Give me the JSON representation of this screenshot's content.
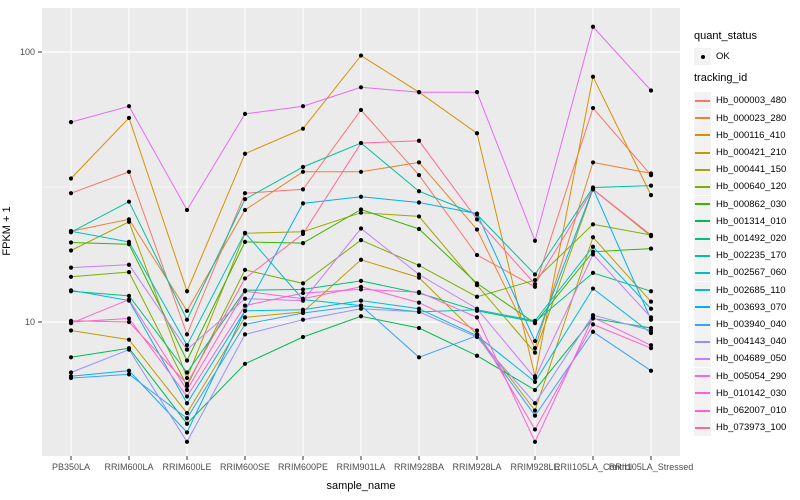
{
  "legend": {
    "quant_status_title": "quant_status",
    "ok_label": "OK",
    "tracking_title": "tracking_id"
  },
  "chart_data": {
    "type": "line",
    "title": "",
    "xlabel": "sample_name",
    "ylabel": "FPKM + 1",
    "y_scale": "log10",
    "y_ticks": [
      10,
      100
    ],
    "y_minor_ticks": [
      31.62
    ],
    "ylim": [
      3.2,
      145
    ],
    "grid": true,
    "legend_position": "right",
    "panel_bg": "#EBEBEB",
    "point_color": "#000000",
    "quant_status": "OK",
    "categories": [
      "PB350LA",
      "RRIM600LA",
      "RRIM600LE",
      "RRIM600SE",
      "RRIM600PE",
      "RRIM901LA",
      "RRIM928BA",
      "RRIM928LA",
      "RRIM928LE",
      "RRII105LA_Control",
      "RRII105LA_Stressed"
    ],
    "series": [
      {
        "name": "Hb_000003_480",
        "color": "#F8766D",
        "values": [
          30,
          36,
          9.0,
          30,
          31,
          61,
          35,
          17.7,
          13.5,
          62,
          35
        ]
      },
      {
        "name": "Hb_000023_280",
        "color": "#EA8331",
        "values": [
          21.7,
          24,
          11,
          26,
          36,
          36,
          39,
          22,
          8.0,
          39,
          35.5
        ]
      },
      {
        "name": "Hb_000116_410",
        "color": "#D89000",
        "values": [
          34,
          57,
          13,
          42,
          52,
          97,
          71,
          50,
          6.3,
          81,
          29.5
        ]
      },
      {
        "name": "Hb_000421_210",
        "color": "#C09B00",
        "values": [
          9.3,
          8.6,
          4.6,
          10.4,
          10.9,
          17,
          14.6,
          9.0,
          4.7,
          20.6,
          11.9
        ]
      },
      {
        "name": "Hb_000441_150",
        "color": "#A3A500",
        "values": [
          18.4,
          23.5,
          6.2,
          21.3,
          21.6,
          25.4,
          24.6,
          13.7,
          7.7,
          31,
          20.8
        ]
      },
      {
        "name": "Hb_000640_120",
        "color": "#7CAE00",
        "values": [
          14.7,
          15.3,
          5.8,
          15.6,
          13.9,
          20.1,
          16.2,
          12.4,
          14.3,
          23,
          21
        ]
      },
      {
        "name": "Hb_000862_030",
        "color": "#39B600",
        "values": [
          19.7,
          19.4,
          7.2,
          19.8,
          19.6,
          26.1,
          22.1,
          13.9,
          9.9,
          18.2,
          18.7
        ]
      },
      {
        "name": "Hb_001314_010",
        "color": "#00BB4E",
        "values": [
          7.4,
          8.0,
          4.2,
          7.0,
          8.8,
          10.5,
          9.5,
          7.5,
          5.6,
          10.3,
          9.5
        ]
      },
      {
        "name": "Hb_001492_020",
        "color": "#00BF7D",
        "values": [
          13.0,
          12.5,
          6.5,
          13.1,
          13.2,
          14.2,
          12.8,
          11.0,
          10.0,
          15.2,
          13.0
        ]
      },
      {
        "name": "Hb_002235_170",
        "color": "#00C1A3",
        "values": [
          21.5,
          27.9,
          10.2,
          28.5,
          37.5,
          46,
          30.5,
          25,
          15,
          31.5,
          32
        ]
      },
      {
        "name": "Hb_002567_060",
        "color": "#00BFC4",
        "values": [
          21.7,
          19.8,
          8.2,
          21.4,
          12.1,
          11.5,
          10.9,
          11.1,
          10.1,
          19,
          11.2
        ]
      },
      {
        "name": "Hb_002685_110",
        "color": "#00BAE0",
        "values": [
          13.1,
          12.0,
          5.0,
          11.0,
          11.1,
          12.0,
          11.2,
          8.9,
          6.0,
          13.3,
          9.1
        ]
      },
      {
        "name": "Hb_003693_070",
        "color": "#00B0F6",
        "values": [
          6.3,
          6.6,
          3.9,
          11.0,
          27.5,
          29.1,
          27.7,
          25.2,
          8.5,
          31.2,
          10.2
        ]
      },
      {
        "name": "Hb_003940_040",
        "color": "#35A2FF",
        "values": [
          6.2,
          6.4,
          4.4,
          9.8,
          10.8,
          11.5,
          7.4,
          8.9,
          4.5,
          9.2,
          6.6
        ]
      },
      {
        "name": "Hb_004143_040",
        "color": "#9590FF",
        "values": [
          6.5,
          7.9,
          3.6,
          9.0,
          10.2,
          11.2,
          10.9,
          8.8,
          5.0,
          10.6,
          9.3
        ]
      },
      {
        "name": "Hb_004689_050",
        "color": "#C77CFF",
        "values": [
          15.9,
          16.3,
          7.9,
          12.2,
          12.0,
          22.2,
          15.0,
          11.2,
          6.2,
          17.8,
          10.4
        ]
      },
      {
        "name": "Hb_005054_290",
        "color": "#E76BF3",
        "values": [
          55,
          63,
          26,
          59,
          63,
          74,
          71,
          71,
          20,
          124,
          72
        ]
      },
      {
        "name": "Hb_010142_030",
        "color": "#FA62DB",
        "values": [
          10.0,
          10.3,
          5.3,
          11.5,
          12.8,
          13.2,
          12.9,
          10.4,
          3.6,
          10.4,
          8.2
        ]
      },
      {
        "name": "Hb_062007_010",
        "color": "#FF61CC",
        "values": [
          9.9,
          12.1,
          5.6,
          13.0,
          12.2,
          13.5,
          11.8,
          9.3,
          4.0,
          9.8,
          8.0
        ]
      },
      {
        "name": "Hb_073973_100",
        "color": "#FF67A4",
        "values": [
          10.1,
          10.0,
          5.9,
          14.5,
          21.2,
          46,
          46.9,
          24,
          13.8,
          31,
          21
        ]
      }
    ]
  }
}
